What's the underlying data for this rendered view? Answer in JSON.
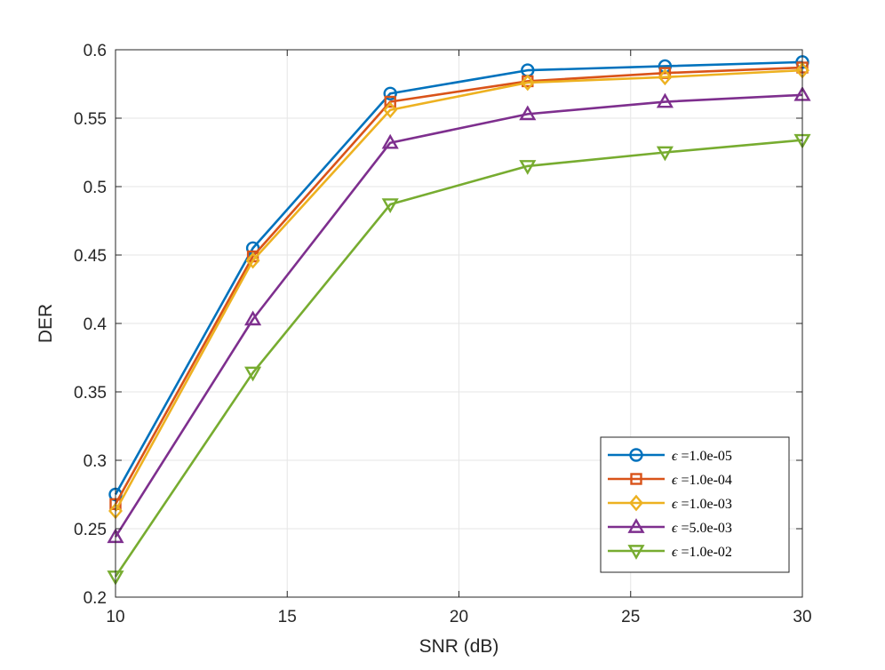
{
  "chart_data": {
    "type": "line",
    "title": "",
    "xlabel": "SNR (dB)",
    "ylabel": "DER",
    "x": [
      10,
      14,
      18,
      22,
      26,
      30
    ],
    "xlim": [
      10,
      30
    ],
    "ylim": [
      0.2,
      0.6
    ],
    "xticks": [
      10,
      15,
      20,
      25,
      30
    ],
    "yticks": [
      0.2,
      0.25,
      0.3,
      0.35,
      0.4,
      0.45,
      0.5,
      0.55,
      0.6
    ],
    "xtick_labels": [
      "10",
      "15",
      "20",
      "25",
      "30"
    ],
    "ytick_labels": [
      "0.2",
      "0.25",
      "0.3",
      "0.35",
      "0.4",
      "0.45",
      "0.5",
      "0.55",
      "0.6"
    ],
    "grid": true,
    "legend_position": "bottom-right",
    "series": [
      {
        "name": "ϵ =1.0e-05",
        "symbol": "ϵ",
        "value_label": " =1.0e-05",
        "color": "#0072BD",
        "marker": "circle",
        "values": [
          0.275,
          0.455,
          0.568,
          0.585,
          0.588,
          0.591
        ]
      },
      {
        "name": "ϵ =1.0e-04",
        "symbol": "ϵ",
        "value_label": " =1.0e-04",
        "color": "#D95319",
        "marker": "square",
        "values": [
          0.268,
          0.449,
          0.562,
          0.577,
          0.583,
          0.587
        ]
      },
      {
        "name": "ϵ =1.0e-03",
        "symbol": "ϵ",
        "value_label": " =1.0e-03",
        "color": "#EDB120",
        "marker": "diamond",
        "values": [
          0.263,
          0.446,
          0.556,
          0.576,
          0.58,
          0.585
        ]
      },
      {
        "name": "ϵ =5.0e-03",
        "symbol": "ϵ",
        "value_label": " =5.0e-03",
        "color": "#7E2F8E",
        "marker": "triangle-up",
        "values": [
          0.244,
          0.403,
          0.532,
          0.553,
          0.562,
          0.567
        ]
      },
      {
        "name": "ϵ =1.0e-02",
        "symbol": "ϵ",
        "value_label": " =1.0e-02",
        "color": "#77AC30",
        "marker": "triangle-down",
        "values": [
          0.215,
          0.364,
          0.487,
          0.515,
          0.525,
          0.534
        ]
      }
    ]
  }
}
